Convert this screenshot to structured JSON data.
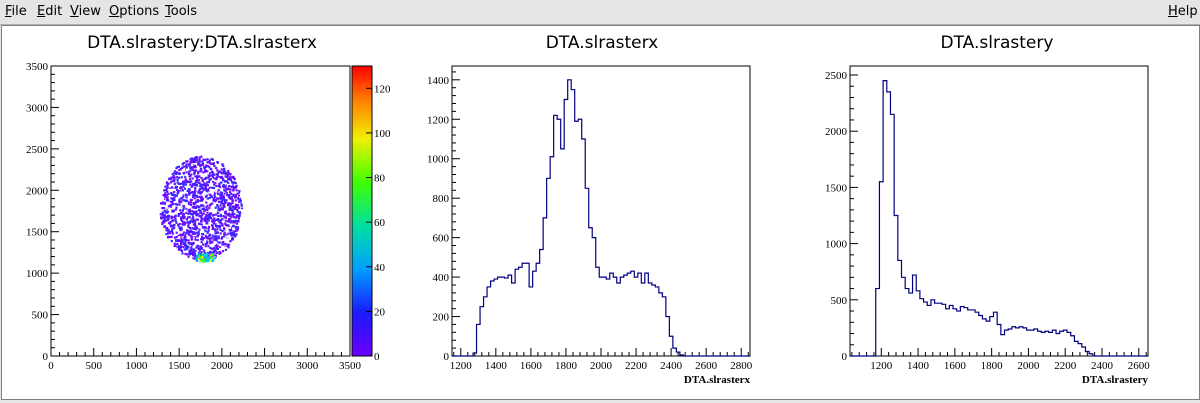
{
  "menubar": {
    "file": {
      "u": "F",
      "rest": "ile"
    },
    "edit": {
      "u": "E",
      "rest": "dit"
    },
    "view": {
      "u": "V",
      "rest": "iew"
    },
    "options": {
      "u": "O",
      "rest": "ptions"
    },
    "tools": {
      "u": "T",
      "rest": "ools"
    },
    "help": {
      "u": "H",
      "rest": "elp"
    }
  },
  "colors": {
    "hist_line": "#000080",
    "frame": "#000000",
    "background": "#ffffff"
  },
  "chart_data": [
    {
      "type": "heatmap",
      "title": "DTA.slrastery:DTA.slrasterx",
      "xlabel": "",
      "ylabel": "",
      "xlim": [
        0,
        3500
      ],
      "ylim": [
        0,
        3500
      ],
      "xticks": [
        0,
        500,
        1000,
        1500,
        2000,
        2500,
        3000,
        3500
      ],
      "yticks": [
        0,
        500,
        1000,
        1500,
        2000,
        2500,
        3000,
        3500
      ],
      "z_range": [
        0,
        130
      ],
      "z_ticks": [
        0,
        20,
        40,
        60,
        80,
        100,
        120
      ],
      "spot": {
        "x_center": 1750,
        "y_center": 1780,
        "x_halfwidth": 480,
        "y_halfwidth": 640,
        "hot_region": {
          "x": 1800,
          "y": 1200
        }
      },
      "colorbar": "rainbow"
    },
    {
      "type": "bar",
      "style": "step-histogram",
      "title": "DTA.slrasterx",
      "xlabel": "DTA.slrasterx",
      "ylabel": "",
      "xlim": [
        1150,
        2850
      ],
      "ylim": [
        0,
        1470
      ],
      "xticks": [
        1200,
        1400,
        1600,
        1800,
        2000,
        2200,
        2400,
        2600,
        2800
      ],
      "yticks": [
        0,
        200,
        400,
        600,
        800,
        1000,
        1200,
        1400
      ],
      "bin_start": 1150,
      "bin_width": 20,
      "values": [
        0,
        0,
        0,
        0,
        0,
        0,
        15,
        160,
        250,
        300,
        350,
        380,
        390,
        400,
        400,
        395,
        410,
        370,
        440,
        450,
        470,
        470,
        350,
        430,
        470,
        540,
        700,
        900,
        1010,
        1220,
        1200,
        1050,
        1300,
        1400,
        1350,
        1190,
        1200,
        1100,
        850,
        650,
        600,
        450,
        400,
        400,
        390,
        420,
        400,
        370,
        400,
        410,
        420,
        430,
        400,
        420,
        370,
        420,
        370,
        360,
        350,
        320,
        300,
        200,
        100,
        40,
        20,
        5,
        0,
        0,
        0,
        0,
        0,
        0,
        0,
        0,
        0,
        0,
        0,
        0,
        0,
        0,
        0,
        0,
        0,
        0,
        0
      ]
    },
    {
      "type": "bar",
      "style": "step-histogram",
      "title": "DTA.slrastery",
      "xlabel": "DTA.slrastery",
      "ylabel": "",
      "xlim": [
        1030,
        2650
      ],
      "ylim": [
        0,
        2580
      ],
      "xticks": [
        1200,
        1400,
        1600,
        1800,
        2000,
        2200,
        2400,
        2600
      ],
      "yticks": [
        0,
        500,
        1000,
        1500,
        2000,
        2500
      ],
      "bin_start": 1030,
      "bin_width": 20,
      "values": [
        0,
        0,
        0,
        0,
        0,
        0,
        0,
        600,
        1550,
        2450,
        2350,
        2150,
        1250,
        850,
        700,
        600,
        560,
        720,
        580,
        510,
        480,
        450,
        500,
        470,
        470,
        460,
        420,
        450,
        420,
        400,
        440,
        430,
        410,
        410,
        390,
        360,
        330,
        310,
        350,
        390,
        280,
        190,
        230,
        240,
        260,
        250,
        260,
        250,
        230,
        230,
        240,
        220,
        210,
        220,
        210,
        230,
        200,
        220,
        230,
        210,
        180,
        130,
        110,
        80,
        40,
        20,
        0,
        0,
        0,
        0,
        0,
        0,
        0,
        0,
        0,
        0,
        0,
        0,
        0,
        0,
        0
      ]
    }
  ]
}
